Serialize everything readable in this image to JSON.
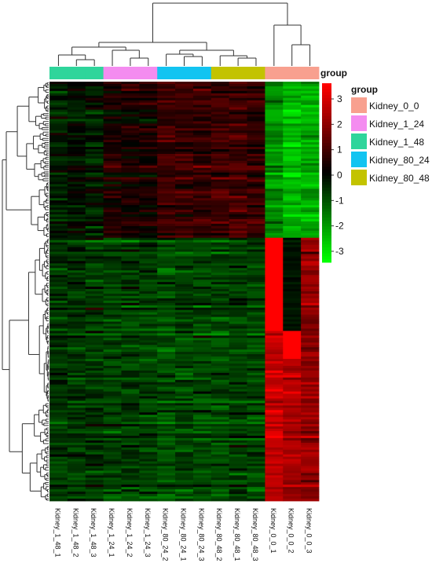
{
  "chart_data": {
    "type": "heatmap",
    "columns": [
      "Kidney_1_48_1",
      "Kidney_1_48_2",
      "Kidney_1_48_3",
      "Kidney_1_24_1",
      "Kidney_1_24_2",
      "Kidney_1_24_3",
      "Kidney_80_24_2",
      "Kidney_80_24_1",
      "Kidney_80_24_3",
      "Kidney_80_48_2",
      "Kidney_80_48_1",
      "Kidney_80_48_3",
      "Kidney_0_0_1",
      "Kidney_0_0_2",
      "Kidney_0_0_3"
    ],
    "column_groups": [
      "Kidney_1_48",
      "Kidney_1_48",
      "Kidney_1_48",
      "Kidney_1_24",
      "Kidney_1_24",
      "Kidney_1_24",
      "Kidney_80_24",
      "Kidney_80_24",
      "Kidney_80_24",
      "Kidney_80_48",
      "Kidney_80_48",
      "Kidney_80_48",
      "Kidney_0_0",
      "Kidney_0_0",
      "Kidney_0_0"
    ],
    "group_annotation_label": "group",
    "legend": {
      "title": "group",
      "placement": "right",
      "items": [
        {
          "name": "Kidney_0_0",
          "color": "#F8A08F"
        },
        {
          "name": "Kidney_1_24",
          "color": "#F48CF0"
        },
        {
          "name": "Kidney_1_48",
          "color": "#2FD59B"
        },
        {
          "name": "Kidney_80_24",
          "color": "#12C4F1"
        },
        {
          "name": "Kidney_80_48",
          "color": "#C3C300"
        }
      ]
    },
    "color_scale": {
      "min": -3,
      "max": 3,
      "low_color": "#00FF00",
      "mid_color": "#000000",
      "high_color": "#FF0000",
      "ticks": [
        "3",
        "2",
        "1",
        "0",
        "-1",
        "-2",
        "-3"
      ]
    },
    "row_clusters": [
      {
        "cluster": "upper",
        "row_fraction": 0.373,
        "mean_values": [
          -0.3,
          -0.2,
          -0.3,
          0.3,
          0.3,
          0.2,
          0.7,
          0.6,
          0.6,
          0.7,
          0.7,
          0.6,
          -1.6,
          -2.2,
          -2.0
        ]
      },
      {
        "cluster": "lower",
        "row_fraction": 0.627,
        "mean_values": [
          -0.6,
          -0.6,
          -0.6,
          -0.7,
          -0.7,
          -0.7,
          -0.9,
          -0.8,
          -0.8,
          -0.8,
          -0.7,
          -0.8,
          2.3,
          2.0,
          1.7
        ]
      }
    ],
    "row_dendrogram": true,
    "column_dendrogram": true
  }
}
